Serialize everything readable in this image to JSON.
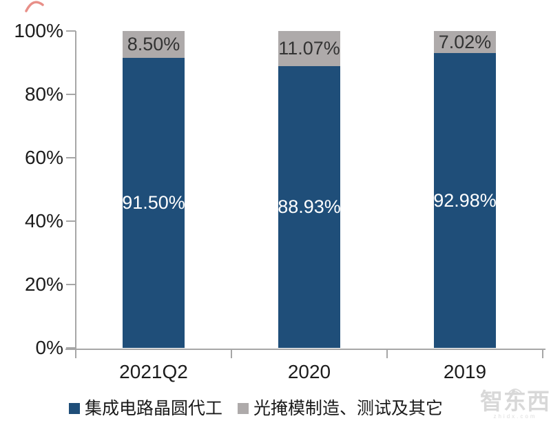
{
  "chart_data": {
    "type": "bar",
    "variant": "stacked-100-percent-column",
    "categories": [
      "2021Q2",
      "2020",
      "2019"
    ],
    "series": [
      {
        "name": "集成电路晶圆代工",
        "color": "#1F4E79",
        "values": [
          91.5,
          88.93,
          92.98
        ],
        "labels": [
          "91.50%",
          "88.93%",
          "92.98%"
        ],
        "label_color": "#ffffff"
      },
      {
        "name": "光掩模制造、测试及其它",
        "color": "#AEAAAA",
        "values": [
          8.5,
          11.07,
          7.02
        ],
        "labels": [
          "8.50%",
          "11.07%",
          "7.02%"
        ],
        "label_color": "#333333"
      }
    ],
    "title": "",
    "xlabel": "",
    "ylabel": "",
    "y_axis": {
      "min": 0,
      "max": 100,
      "tick_labels": [
        "0%",
        "20%",
        "40%",
        "60%",
        "80%",
        "100%"
      ]
    },
    "grid": false,
    "legend_position": "bottom",
    "axis_color": "#a6a6a6"
  },
  "watermark": {
    "text": "智东西",
    "subtext": "zhidx.com"
  }
}
